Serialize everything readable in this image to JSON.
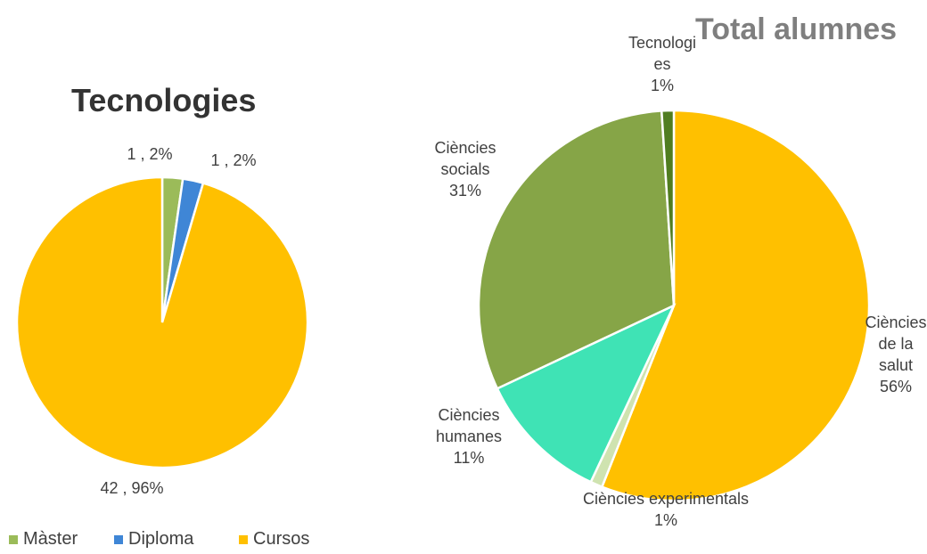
{
  "chart_data": [
    {
      "type": "pie",
      "title": "Tecnologies",
      "categories": [
        "Màster",
        "Diploma",
        "Cursos"
      ],
      "values": [
        1,
        1,
        42
      ],
      "value_labels": [
        "1 , 2%",
        "1 , 2%",
        "42 , 96%"
      ],
      "colors": [
        "#9bbb59",
        "#3f86d6",
        "#ffc000"
      ],
      "legend": "bottom"
    },
    {
      "type": "pie",
      "title": "Total alumnes",
      "categories": [
        "Ciències de la salut",
        "Ciències experimentals",
        "Ciències humanes",
        "Ciències socials",
        "Tecnologies"
      ],
      "values": [
        56,
        1,
        11,
        31,
        1
      ],
      "value_labels": [
        "56%",
        "1%",
        "11%",
        "31%",
        "1%"
      ],
      "colors": [
        "#ffc000",
        "#cfe3b0",
        "#3fe3b5",
        "#86a547",
        "#507d20"
      ]
    }
  ]
}
